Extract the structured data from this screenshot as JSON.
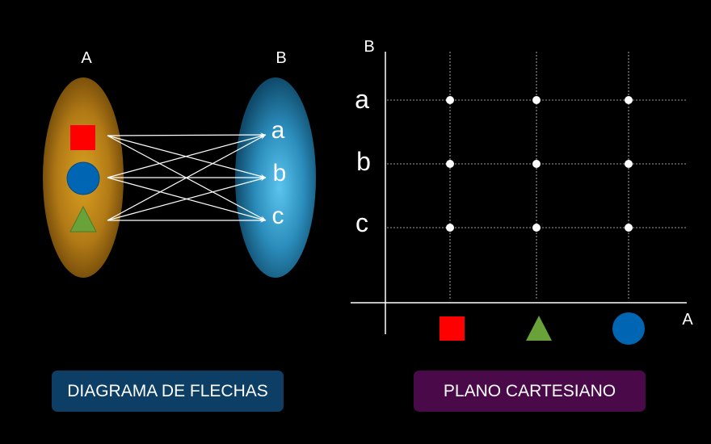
{
  "arrow_diagram": {
    "set_a_label": "A",
    "set_b_label": "B",
    "set_a_color": "#b87d14",
    "set_b_color": "#2f97c4",
    "set_a_elements": [
      "red-square",
      "blue-circle",
      "green-triangle"
    ],
    "set_b_elements": [
      "a",
      "b",
      "c"
    ],
    "arrow_color": "#ffffff"
  },
  "cartesian_plane": {
    "x_axis_label": "A",
    "y_axis_label": "B",
    "y_ticks": [
      "a",
      "b",
      "c"
    ],
    "x_ticks": [
      "red-square",
      "green-triangle",
      "blue-circle"
    ],
    "points": [
      [
        "red-square",
        "a"
      ],
      [
        "green-triangle",
        "a"
      ],
      [
        "blue-circle",
        "a"
      ],
      [
        "red-square",
        "b"
      ],
      [
        "green-triangle",
        "b"
      ],
      [
        "blue-circle",
        "b"
      ],
      [
        "red-square",
        "c"
      ],
      [
        "green-triangle",
        "c"
      ],
      [
        "blue-circle",
        "c"
      ]
    ]
  },
  "shape_colors": {
    "red-square": "#ff0000",
    "blue-circle": "#0066b3",
    "green-triangle": "#6aa23a"
  },
  "buttons": {
    "arrow_diagram_label": "DIAGRAMA DE FLECHAS",
    "arrow_diagram_color": "#0d3f66",
    "cartesian_label": "PLANO CARTESIANO",
    "cartesian_color": "#4a0a4a"
  }
}
